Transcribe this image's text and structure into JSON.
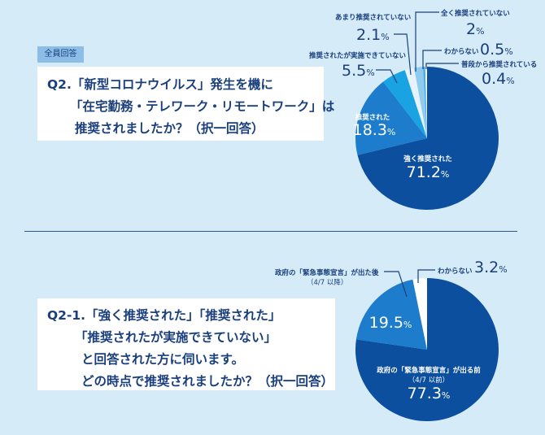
{
  "tag": "全員回答",
  "q1": {
    "lines": [
      "Q2.「新型コロナウイルス」発生を機に",
      "「在宅勤務・テレワーク・リモートワーク」は",
      "推奨されましたか？（択一回答）"
    ]
  },
  "q2": {
    "lines": [
      "Q2-1.「強く推奨された」「推奨された」",
      "「推奨されたが実施できていない」",
      "と回答された方に伺います。",
      "どの時点で推奨されましたか？（択一回答）"
    ]
  },
  "chart_data": [
    {
      "type": "pie",
      "unit": "%",
      "slices": [
        {
          "label": "強く推奨された",
          "value": 71.2,
          "display": "71.2",
          "color": "#0b4f9e"
        },
        {
          "label": "推奨された",
          "value": 18.3,
          "display": "18.3",
          "color": "#1d7ccb"
        },
        {
          "label": "推奨されたが実施できていない",
          "value": 5.5,
          "display": "5.5",
          "color": "#19a3e2"
        },
        {
          "label": "あまり推奨されていない",
          "value": 2.1,
          "display": "2.1",
          "color": "#e6f3fc"
        },
        {
          "label": "全く推奨されていない",
          "value": 2.0,
          "display": "2",
          "color": "#8fcbef"
        },
        {
          "label": "わからない",
          "value": 0.5,
          "display": "0.5",
          "color": "#4aaee6"
        },
        {
          "label": "普段から推奨されている",
          "value": 0.4,
          "display": "0.4",
          "color": "#ffffff"
        }
      ]
    },
    {
      "type": "pie",
      "unit": "%",
      "slices": [
        {
          "label": "政府の「緊急事態宣言」が出る前",
          "sublabel": "（4/7 以前）",
          "value": 77.3,
          "display": "77.3",
          "color": "#0b4f9e"
        },
        {
          "label": "政府の「緊急事態宣言」が出た後",
          "sublabel": "（4/7 以降）",
          "value": 19.5,
          "display": "19.5",
          "color": "#1d7ccb"
        },
        {
          "label": "わからない",
          "value": 3.2,
          "display": "3.2",
          "color": "#ffffff"
        }
      ]
    }
  ]
}
